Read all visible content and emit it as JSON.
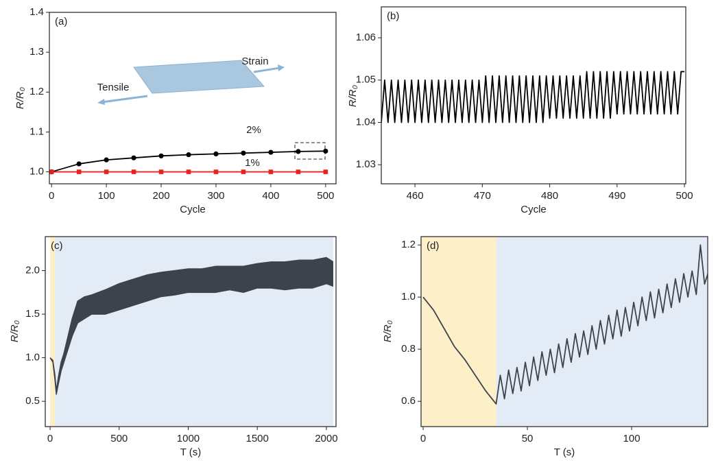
{
  "chart_data": [
    {
      "type": "line",
      "panel_label": "(a)",
      "x_label": "Cycle",
      "y_label": "R/R₀",
      "annotations": [
        "Tensile",
        "Strain",
        "2%",
        "1%"
      ],
      "x": [
        0,
        50,
        100,
        150,
        200,
        250,
        300,
        350,
        400,
        450,
        500
      ],
      "series": [
        {
          "color": "#000000",
          "marker": "circle",
          "values": [
            1.0,
            1.02,
            1.03,
            1.035,
            1.04,
            1.043,
            1.045,
            1.047,
            1.049,
            1.051,
            1.052
          ]
        },
        {
          "color": "#e8231f",
          "marker": "square",
          "values": [
            1.0,
            1.0,
            1.0,
            1.0,
            1.0,
            1.0,
            1.0,
            1.0,
            1.0,
            1.0,
            1.0
          ]
        }
      ],
      "xlim": [
        -4,
        519
      ],
      "ylim": [
        0.97,
        1.4
      ],
      "xticks": [
        0,
        100,
        200,
        300,
        400,
        500
      ],
      "yticks": [
        {
          "value": 1.0,
          "label": "1.0"
        },
        1.1,
        1.2,
        1.3,
        1.4
      ]
    },
    {
      "type": "line",
      "panel_label": "(b)",
      "x_label": "Cycle",
      "y_label": "R/R₀",
      "x": [
        455,
        455.5,
        456,
        456.5,
        457,
        457.5,
        458,
        458.5,
        459,
        459.5,
        460,
        460.5,
        461,
        461.5,
        462,
        462.5,
        463,
        463.5,
        464,
        464.5,
        465,
        465.5,
        466,
        466.5,
        467,
        467.5,
        468,
        468.5,
        469,
        469.5,
        470,
        470.5,
        471,
        471.5,
        472,
        472.5,
        473,
        473.5,
        474,
        474.5,
        475,
        475.5,
        476,
        476.5,
        477,
        477.5,
        478,
        478.5,
        479,
        479.5,
        480,
        480.5,
        481,
        481.5,
        482,
        482.5,
        483,
        483.5,
        484,
        484.5,
        485,
        485.5,
        486,
        486.5,
        487,
        487.5,
        488,
        488.5,
        489,
        489.5,
        490,
        490.5,
        491,
        491.5,
        492,
        492.5,
        493,
        493.5,
        494,
        494.5,
        495,
        495.5,
        496,
        496.5,
        497,
        497.5,
        498,
        498.5,
        499,
        499.5,
        500
      ],
      "series": [
        {
          "color": "#000000",
          "values": [
            1.04,
            1.05,
            1.04,
            1.05,
            1.04,
            1.05,
            1.04,
            1.05,
            1.04,
            1.05,
            1.04,
            1.05,
            1.04,
            1.05,
            1.04,
            1.05,
            1.04,
            1.05,
            1.04,
            1.05,
            1.04,
            1.05,
            1.04,
            1.05,
            1.04,
            1.05,
            1.04,
            1.05,
            1.04,
            1.05,
            1.04,
            1.051,
            1.04,
            1.051,
            1.04,
            1.051,
            1.04,
            1.051,
            1.04,
            1.051,
            1.04,
            1.051,
            1.04,
            1.051,
            1.04,
            1.051,
            1.04,
            1.051,
            1.04,
            1.051,
            1.041,
            1.051,
            1.041,
            1.051,
            1.041,
            1.051,
            1.041,
            1.051,
            1.041,
            1.051,
            1.041,
            1.052,
            1.041,
            1.052,
            1.041,
            1.052,
            1.041,
            1.052,
            1.041,
            1.052,
            1.042,
            1.052,
            1.042,
            1.052,
            1.042,
            1.052,
            1.042,
            1.052,
            1.042,
            1.052,
            1.042,
            1.052,
            1.042,
            1.052,
            1.042,
            1.052,
            1.042,
            1.052,
            1.042,
            1.052,
            1.052
          ]
        }
      ],
      "xlim": [
        455,
        500.2
      ],
      "ylim": [
        1.0255,
        1.0673
      ],
      "xticks": [
        460,
        470,
        480,
        490,
        500
      ],
      "yticks": [
        1.03,
        1.04,
        1.05,
        1.06
      ]
    },
    {
      "type": "area",
      "panel_label": "(c)",
      "x_label": "T (s)",
      "y_label": "R/R₀",
      "spans": [
        {
          "start": 0,
          "end": 35,
          "color": "#fdefc7"
        },
        {
          "start": 35,
          "end": 2050,
          "color": "#e3ebf6"
        }
      ],
      "x": [
        0,
        20,
        35,
        45,
        60,
        80,
        100,
        130,
        160,
        200,
        250,
        300,
        400,
        500,
        600,
        700,
        800,
        900,
        1000,
        1100,
        1200,
        1300,
        1400,
        1500,
        1600,
        1700,
        1800,
        1900,
        2000,
        2050
      ],
      "series": [
        {
          "color": "#3d434b",
          "values": [
            1.0,
            0.97,
            0.8,
            0.62,
            0.78,
            0.95,
            1.05,
            1.25,
            1.45,
            1.65,
            1.7,
            1.72,
            1.78,
            1.85,
            1.9,
            1.95,
            1.98,
            2.0,
            2.02,
            2.02,
            2.05,
            2.05,
            2.05,
            2.08,
            2.1,
            2.1,
            2.12,
            2.12,
            2.15,
            2.1
          ]
        },
        {
          "color": "#3d434b",
          "values": [
            1.0,
            0.95,
            0.75,
            0.58,
            0.7,
            0.85,
            0.95,
            1.1,
            1.25,
            1.4,
            1.45,
            1.5,
            1.5,
            1.55,
            1.6,
            1.65,
            1.7,
            1.72,
            1.75,
            1.75,
            1.75,
            1.78,
            1.75,
            1.8,
            1.8,
            1.78,
            1.8,
            1.8,
            1.85,
            1.82
          ]
        }
      ],
      "xlim": [
        -35,
        2070
      ],
      "ylim": [
        0.21,
        2.39
      ],
      "xticks": [
        0,
        500,
        1000,
        1500,
        2000
      ],
      "yticks": [
        0.5,
        {
          "value": 1.0,
          "label": "1.0"
        },
        1.5,
        {
          "value": 2.0,
          "label": "2.0"
        }
      ]
    },
    {
      "type": "line",
      "panel_label": "(d)",
      "x_label": "T (s)",
      "y_label": "R/R₀",
      "spans": [
        {
          "start": -1,
          "end": 35,
          "color": "#fdefc7"
        },
        {
          "start": 35,
          "end": 136.5,
          "color": "#e3ebf6"
        }
      ],
      "x": [
        0,
        5,
        10,
        15,
        20,
        25,
        30,
        35,
        37,
        39,
        41,
        43,
        45,
        47,
        49,
        51,
        53,
        55,
        57,
        59,
        61,
        63,
        65,
        67,
        69,
        71,
        73,
        75,
        77,
        79,
        81,
        83,
        85,
        87,
        89,
        91,
        93,
        95,
        97,
        99,
        101,
        103,
        105,
        107,
        109,
        111,
        113,
        115,
        117,
        119,
        121,
        123,
        125,
        127,
        129,
        131,
        133,
        135,
        137
      ],
      "series": [
        {
          "color": "#3d434b",
          "values": [
            1.0,
            0.95,
            0.88,
            0.81,
            0.76,
            0.7,
            0.64,
            0.59,
            0.7,
            0.61,
            0.72,
            0.63,
            0.73,
            0.64,
            0.75,
            0.66,
            0.77,
            0.68,
            0.79,
            0.7,
            0.8,
            0.71,
            0.82,
            0.73,
            0.84,
            0.75,
            0.86,
            0.77,
            0.87,
            0.78,
            0.89,
            0.8,
            0.91,
            0.82,
            0.93,
            0.84,
            0.95,
            0.85,
            0.96,
            0.87,
            0.98,
            0.89,
            1.0,
            0.91,
            1.02,
            0.92,
            1.03,
            0.94,
            1.05,
            0.96,
            1.07,
            0.98,
            1.09,
            1.0,
            1.1,
            1.01,
            1.2,
            1.05,
            1.1
          ]
        }
      ],
      "xlim": [
        -1,
        136.5
      ],
      "ylim": [
        0.503,
        1.232
      ],
      "xticks": [
        0,
        50,
        100
      ],
      "yticks": [
        0.6,
        0.8,
        {
          "value": 1.0,
          "label": "1.0"
        },
        1.2
      ]
    }
  ]
}
